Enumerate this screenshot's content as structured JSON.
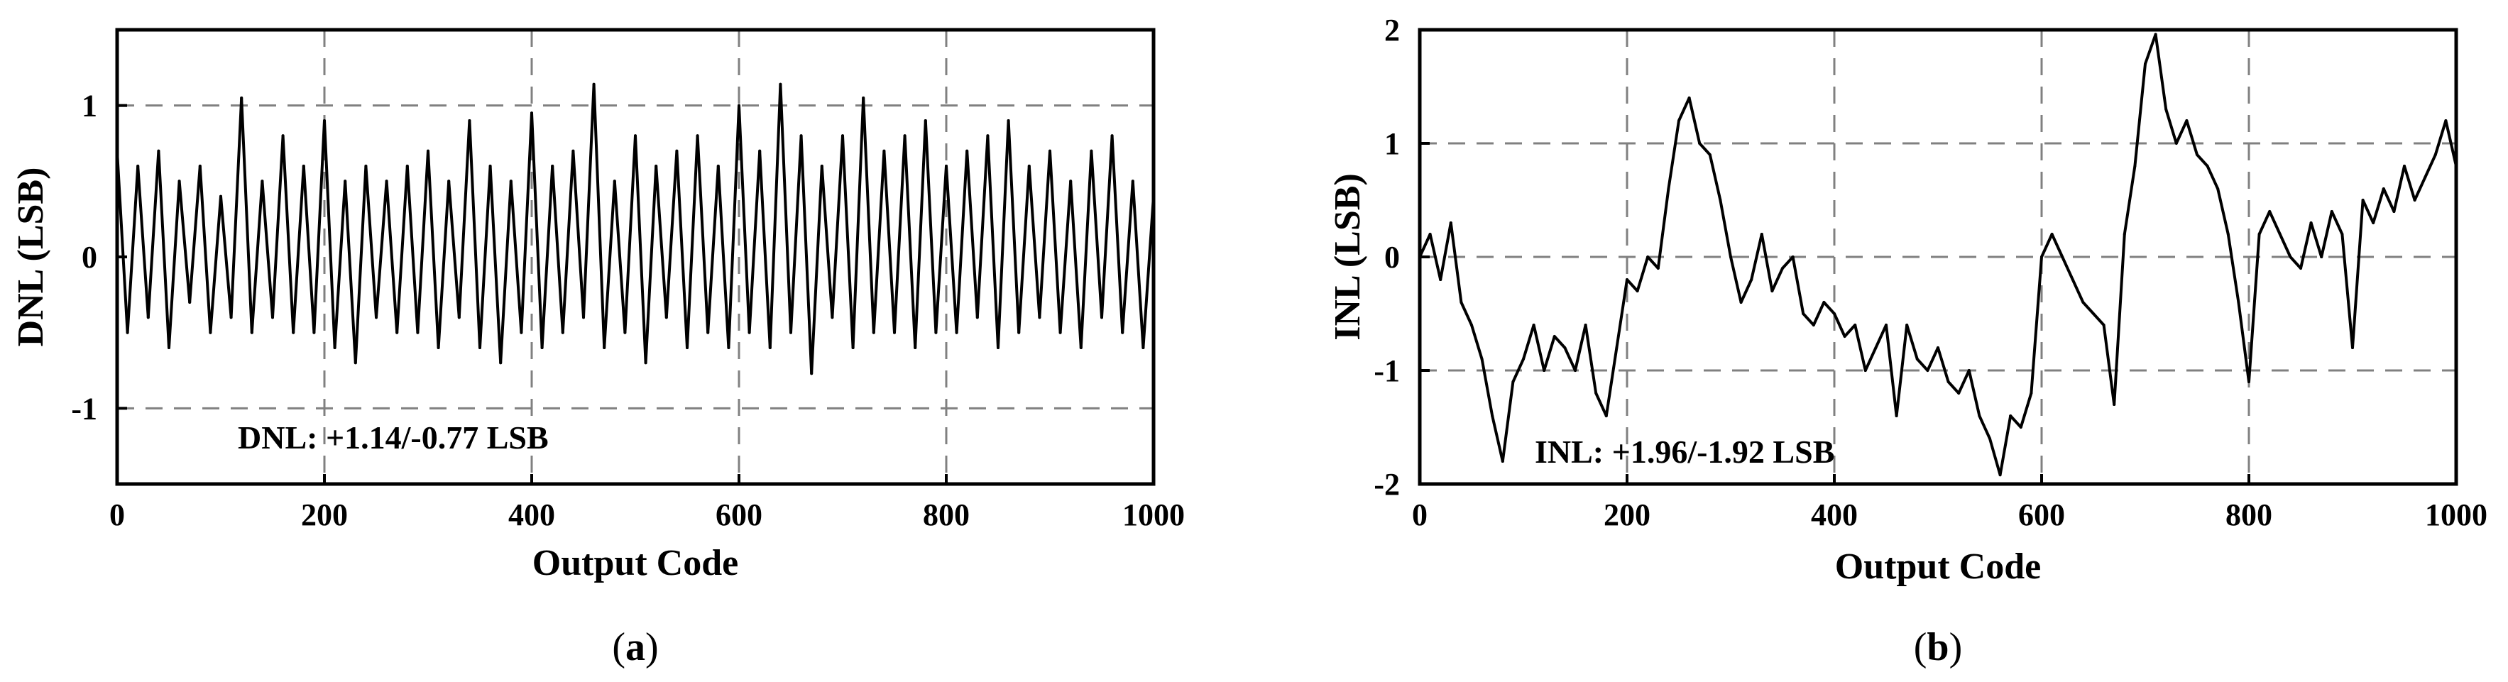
{
  "chart_data": [
    {
      "type": "line",
      "panel_label": "a",
      "xlabel": "Output Code",
      "ylabel": "DNL (LSB)",
      "xlim": [
        0,
        1000
      ],
      "ylim": [
        -1.5,
        1.5
      ],
      "xticks": [
        0,
        200,
        400,
        600,
        800,
        1000
      ],
      "yticks": [
        1,
        0,
        -1
      ],
      "xtick_labels": [
        "0",
        "200",
        "400",
        "600",
        "800",
        "1000"
      ],
      "ytick_labels": [
        "1",
        "0",
        "-1"
      ],
      "grid": true,
      "annotation": "DNL: +1.14/-0.77 LSB",
      "series": [
        {
          "x": [
            0,
            10,
            20,
            30,
            40,
            50,
            60,
            70,
            80,
            90,
            100,
            110,
            120,
            130,
            140,
            150,
            160,
            170,
            180,
            190,
            200,
            210,
            220,
            230,
            240,
            250,
            260,
            270,
            280,
            290,
            300,
            310,
            320,
            330,
            340,
            350,
            360,
            370,
            380,
            390,
            400,
            410,
            420,
            430,
            440,
            450,
            460,
            470,
            480,
            490,
            500,
            510,
            520,
            530,
            540,
            550,
            560,
            570,
            580,
            590,
            600,
            610,
            620,
            630,
            640,
            650,
            660,
            670,
            680,
            690,
            700,
            710,
            720,
            730,
            740,
            750,
            760,
            770,
            780,
            790,
            800,
            810,
            820,
            830,
            840,
            850,
            860,
            870,
            880,
            890,
            900,
            910,
            920,
            930,
            940,
            950,
            960,
            970,
            980,
            990,
            1000
          ],
          "values": [
            0.7,
            -0.5,
            0.6,
            -0.4,
            0.7,
            -0.6,
            0.5,
            -0.3,
            0.6,
            -0.5,
            0.4,
            -0.4,
            1.05,
            -0.5,
            0.5,
            -0.4,
            0.8,
            -0.5,
            0.6,
            -0.5,
            0.9,
            -0.6,
            0.5,
            -0.7,
            0.6,
            -0.4,
            0.5,
            -0.5,
            0.6,
            -0.5,
            0.7,
            -0.6,
            0.5,
            -0.4,
            0.9,
            -0.6,
            0.6,
            -0.7,
            0.5,
            -0.5,
            0.95,
            -0.6,
            0.6,
            -0.5,
            0.7,
            -0.4,
            1.14,
            -0.6,
            0.5,
            -0.5,
            0.8,
            -0.7,
            0.6,
            -0.4,
            0.7,
            -0.6,
            0.8,
            -0.5,
            0.6,
            -0.6,
            1.0,
            -0.5,
            0.7,
            -0.6,
            1.14,
            -0.5,
            0.8,
            -0.77,
            0.6,
            -0.4,
            0.8,
            -0.6,
            1.05,
            -0.5,
            0.7,
            -0.5,
            0.8,
            -0.6,
            0.9,
            -0.5,
            0.6,
            -0.5,
            0.7,
            -0.4,
            0.8,
            -0.6,
            0.9,
            -0.5,
            0.6,
            -0.4,
            0.7,
            -0.5,
            0.5,
            -0.6,
            0.7,
            -0.4,
            0.8,
            -0.5,
            0.5,
            -0.6,
            0.4
          ]
        }
      ]
    },
    {
      "type": "line",
      "panel_label": "b",
      "xlabel": "Output Code",
      "ylabel": "INL (LSB)",
      "xlim": [
        0,
        1000
      ],
      "ylim": [
        -2,
        2
      ],
      "xticks": [
        0,
        200,
        400,
        600,
        800,
        1000
      ],
      "yticks": [
        2,
        1,
        0,
        -1,
        -2
      ],
      "xtick_labels": [
        "0",
        "200",
        "400",
        "600",
        "800",
        "1000"
      ],
      "ytick_labels": [
        "2",
        "1",
        "0",
        "-1",
        "-2"
      ],
      "grid": true,
      "annotation": "INL: +1.96/-1.92 LSB",
      "series": [
        {
          "x": [
            0,
            10,
            20,
            30,
            40,
            50,
            60,
            70,
            80,
            90,
            100,
            110,
            120,
            130,
            140,
            150,
            160,
            170,
            180,
            190,
            200,
            210,
            220,
            230,
            240,
            250,
            260,
            270,
            280,
            290,
            300,
            310,
            320,
            330,
            340,
            350,
            360,
            370,
            380,
            390,
            400,
            410,
            420,
            430,
            440,
            450,
            460,
            470,
            480,
            490,
            500,
            510,
            520,
            530,
            540,
            550,
            560,
            570,
            580,
            590,
            600,
            610,
            620,
            630,
            640,
            650,
            660,
            670,
            680,
            690,
            700,
            710,
            720,
            730,
            740,
            750,
            760,
            770,
            780,
            790,
            800,
            810,
            820,
            830,
            840,
            850,
            860,
            870,
            880,
            890,
            900,
            910,
            920,
            930,
            940,
            950,
            960,
            970,
            980,
            990,
            1000
          ],
          "values": [
            0.0,
            0.2,
            -0.2,
            0.3,
            -0.4,
            -0.6,
            -0.9,
            -1.4,
            -1.8,
            -1.1,
            -0.9,
            -0.6,
            -1.0,
            -0.7,
            -0.8,
            -1.0,
            -0.6,
            -1.2,
            -1.4,
            -0.8,
            -0.2,
            -0.3,
            0.0,
            -0.1,
            0.6,
            1.2,
            1.4,
            1.0,
            0.9,
            0.5,
            0.0,
            -0.4,
            -0.2,
            0.2,
            -0.3,
            -0.1,
            0.0,
            -0.5,
            -0.6,
            -0.4,
            -0.5,
            -0.7,
            -0.6,
            -1.0,
            -0.8,
            -0.6,
            -1.4,
            -0.6,
            -0.9,
            -1.0,
            -0.8,
            -1.1,
            -1.2,
            -1.0,
            -1.4,
            -1.6,
            -1.92,
            -1.4,
            -1.5,
            -1.2,
            0.0,
            0.2,
            0.0,
            -0.2,
            -0.4,
            -0.5,
            -0.6,
            -1.3,
            0.2,
            0.8,
            1.7,
            1.96,
            1.3,
            1.0,
            1.2,
            0.9,
            0.8,
            0.6,
            0.2,
            -0.4,
            -1.1,
            0.2,
            0.4,
            0.2,
            0.0,
            -0.1,
            0.3,
            0.0,
            0.4,
            0.2,
            -0.8,
            0.5,
            0.3,
            0.6,
            0.4,
            0.8,
            0.5,
            0.7,
            0.9,
            1.2,
            0.8
          ]
        }
      ]
    }
  ],
  "captions": [
    {
      "open": "(",
      "label": "a",
      "close": ")"
    },
    {
      "open": "(",
      "label": "b",
      "close": ")"
    }
  ]
}
